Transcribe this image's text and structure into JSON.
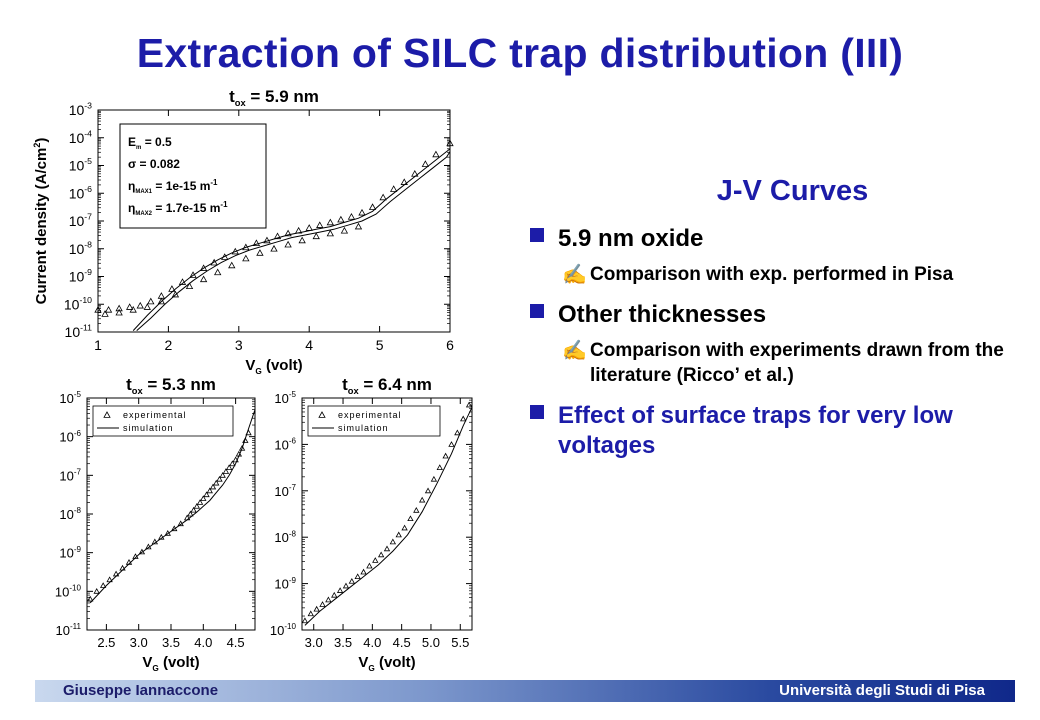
{
  "slide": {
    "title": "Extraction of SILC trap distribution (III)",
    "section_title": "J-V Curves",
    "bullets": [
      {
        "text": "5.9 nm oxide",
        "subs": [
          "Comparison with exp. performed in Pisa"
        ]
      },
      {
        "text": "Other thicknesses",
        "subs": [
          "Comparison with experiments drawn from the literature (Ricco’ et al.)"
        ]
      },
      {
        "text": "Effect of surface traps for very low voltages",
        "subs": []
      }
    ],
    "footer": {
      "author": "Giuseppe Iannaccone",
      "university": "Università degli Studi di Pisa"
    },
    "colors": {
      "title": "#1c1ca8",
      "bullet": "#1c1ca8",
      "text": "#000000"
    }
  },
  "chart_data": [
    {
      "type": "scatter",
      "title": "t_ox = 5.9 nm",
      "title_main": "t",
      "title_sub": "ox",
      "title_rest": " = 5.9 nm",
      "xlabel_main": "V",
      "xlabel_sub": "G",
      "xlabel_rest": " (volt)",
      "ylabel": "Current density (A/cm",
      "ylabel_sup": "2",
      "ylabel_end": ")",
      "xlim": [
        1,
        6
      ],
      "ylim_exp": [
        -11,
        -3
      ],
      "xticks": [
        "1",
        "2",
        "3",
        "4",
        "5",
        "6"
      ],
      "yticks_exp": [
        "-11",
        "-10",
        "-9",
        "-8",
        "-7",
        "-6",
        "-5",
        "-4",
        "-3"
      ],
      "box_lines": [
        {
          "main": "E",
          "sub": "m",
          "rest": " = 0.5"
        },
        {
          "main": "σ",
          "sub": "",
          "rest": " = 0.082"
        },
        {
          "main": "η",
          "sub": "MAX1",
          "rest": " = 1e-15 m",
          "sup": "-1"
        },
        {
          "main": "η",
          "sub": "MAX2",
          "rest": " = 1.7e-15 m",
          "sup": "-1"
        }
      ],
      "series": [
        {
          "marker": "triangle",
          "x": [
            1.0,
            1.15,
            1.3,
            1.45,
            1.6,
            1.75,
            1.9,
            2.05,
            2.2,
            2.35,
            2.5,
            2.65,
            2.8,
            2.95,
            3.1,
            3.25,
            3.4,
            3.55,
            3.7,
            3.85,
            4.0,
            4.15,
            4.3,
            4.45,
            4.6,
            4.75,
            4.9,
            5.05,
            5.2,
            5.35,
            5.5,
            5.65,
            5.8,
            6.0
          ],
          "y": [
            -10.2,
            -10.2,
            -10.15,
            -10.1,
            -10.05,
            -9.9,
            -9.7,
            -9.45,
            -9.2,
            -8.95,
            -8.7,
            -8.5,
            -8.3,
            -8.1,
            -7.95,
            -7.8,
            -7.7,
            -7.55,
            -7.45,
            -7.35,
            -7.25,
            -7.15,
            -7.05,
            -6.95,
            -6.85,
            -6.7,
            -6.5,
            -6.15,
            -5.85,
            -5.6,
            -5.3,
            -4.95,
            -4.6,
            -4.2
          ]
        },
        {
          "marker": "triangle",
          "x": [
            1.1,
            1.3,
            1.5,
            1.7,
            1.9,
            2.1,
            2.3,
            2.5,
            2.7,
            2.9,
            3.1,
            3.3,
            3.5,
            3.7,
            3.9,
            4.1,
            4.3,
            4.5,
            4.7
          ],
          "y": [
            -10.35,
            -10.3,
            -10.2,
            -10.1,
            -9.9,
            -9.65,
            -9.35,
            -9.1,
            -8.85,
            -8.6,
            -8.35,
            -8.15,
            -8.0,
            -7.85,
            -7.7,
            -7.55,
            -7.45,
            -7.35,
            -7.2
          ]
        },
        {
          "marker": "line",
          "x": [
            1.5,
            1.7,
            1.9,
            2.1,
            2.3,
            2.5,
            2.7,
            2.9,
            3.1,
            3.3,
            3.5,
            3.7,
            3.9,
            4.1,
            4.3,
            4.5,
            4.7,
            4.9,
            5.1,
            5.3,
            5.5,
            5.7,
            5.9,
            6.0
          ],
          "y": [
            -10.95,
            -10.4,
            -9.9,
            -9.45,
            -9.05,
            -8.7,
            -8.4,
            -8.15,
            -7.95,
            -7.8,
            -7.65,
            -7.5,
            -7.4,
            -7.3,
            -7.2,
            -7.05,
            -6.9,
            -6.65,
            -6.2,
            -5.8,
            -5.4,
            -5.0,
            -4.6,
            -4.4
          ]
        },
        {
          "marker": "line",
          "x": [
            1.55,
            1.75,
            1.95,
            2.15,
            2.35,
            2.55,
            2.75,
            2.95,
            3.15,
            3.35,
            3.55,
            3.75,
            3.95,
            4.15,
            4.35,
            4.55,
            4.75,
            4.95,
            5.15,
            5.35,
            5.55,
            5.75,
            5.95,
            6.0
          ],
          "y": [
            -10.95,
            -10.5,
            -10.0,
            -9.55,
            -9.15,
            -8.8,
            -8.5,
            -8.25,
            -8.05,
            -7.9,
            -7.75,
            -7.6,
            -7.5,
            -7.4,
            -7.3,
            -7.15,
            -7.0,
            -6.75,
            -6.3,
            -5.9,
            -5.5,
            -5.1,
            -4.7,
            -4.5
          ]
        }
      ]
    },
    {
      "type": "scatter",
      "title": "t_ox = 5.3 nm",
      "title_main": "t",
      "title_sub": "ox",
      "title_rest": " = 5.3 nm",
      "xlabel_main": "V",
      "xlabel_sub": "G",
      "xlabel_rest": " (volt)",
      "xlim": [
        2.2,
        4.8
      ],
      "ylim_exp": [
        -11,
        -5
      ],
      "xticks": [
        "2.5",
        "3.0",
        "3.5",
        "4.0",
        "4.5"
      ],
      "yticks_exp": [
        "-11",
        "-10",
        "-9",
        "-8",
        "-7",
        "-6",
        "-5"
      ],
      "legend": [
        "experimental",
        "simulation"
      ],
      "series": [
        {
          "name": "experimental",
          "marker": "triangle",
          "x": [
            2.25,
            2.35,
            2.45,
            2.55,
            2.65,
            2.75,
            2.85,
            2.95,
            3.05,
            3.15,
            3.25,
            3.35,
            3.45,
            3.55,
            3.65,
            3.75,
            3.8,
            3.85,
            3.9,
            3.95,
            4.0,
            4.05,
            4.1,
            4.15,
            4.2,
            4.25,
            4.3,
            4.35,
            4.4,
            4.45,
            4.5,
            4.55,
            4.6,
            4.65,
            4.7
          ],
          "y": [
            -10.2,
            -10.0,
            -9.85,
            -9.7,
            -9.55,
            -9.4,
            -9.25,
            -9.1,
            -8.98,
            -8.85,
            -8.72,
            -8.6,
            -8.5,
            -8.38,
            -8.25,
            -8.1,
            -8.0,
            -7.9,
            -7.8,
            -7.7,
            -7.6,
            -7.5,
            -7.4,
            -7.3,
            -7.2,
            -7.1,
            -7.0,
            -6.9,
            -6.8,
            -6.7,
            -6.6,
            -6.45,
            -6.3,
            -6.1,
            -5.9
          ]
        },
        {
          "name": "simulation",
          "marker": "line",
          "x": [
            2.25,
            2.5,
            2.75,
            3.0,
            3.25,
            3.5,
            3.75,
            3.9,
            4.0,
            4.1,
            4.2,
            4.3,
            4.4,
            4.5,
            4.6,
            4.7,
            4.8
          ],
          "y": [
            -10.3,
            -9.85,
            -9.45,
            -9.05,
            -8.75,
            -8.45,
            -8.15,
            -7.95,
            -7.8,
            -7.65,
            -7.45,
            -7.25,
            -7.0,
            -6.7,
            -6.3,
            -5.8,
            -5.3
          ]
        }
      ]
    },
    {
      "type": "scatter",
      "title": "t_ox = 6.4 nm",
      "title_main": "t",
      "title_sub": "ox",
      "title_rest": " = 6.4 nm",
      "xlabel_main": "V",
      "xlabel_sub": "G",
      "xlabel_rest": " (volt)",
      "xlim": [
        2.8,
        5.7
      ],
      "ylim_exp": [
        -10,
        -5
      ],
      "xticks": [
        "3.0",
        "3.5",
        "4.0",
        "4.5",
        "5.0",
        "5.5"
      ],
      "yticks_exp": [
        "-10",
        "-9",
        "-8",
        "-7",
        "-6",
        "-5"
      ],
      "legend": [
        "experimental",
        "simulation"
      ],
      "series": [
        {
          "name": "experimental",
          "marker": "triangle",
          "x": [
            2.85,
            2.95,
            3.05,
            3.15,
            3.25,
            3.35,
            3.45,
            3.55,
            3.65,
            3.75,
            3.85,
            3.95,
            4.05,
            4.15,
            4.25,
            4.35,
            4.45,
            4.55,
            4.65,
            4.75,
            4.85,
            4.95,
            5.05,
            5.15,
            5.25,
            5.35,
            5.45,
            5.55,
            5.65
          ],
          "y": [
            -9.8,
            -9.65,
            -9.55,
            -9.45,
            -9.35,
            -9.25,
            -9.15,
            -9.05,
            -8.95,
            -8.85,
            -8.75,
            -8.62,
            -8.5,
            -8.38,
            -8.25,
            -8.1,
            -7.95,
            -7.8,
            -7.6,
            -7.42,
            -7.2,
            -7.0,
            -6.75,
            -6.5,
            -6.25,
            -6.0,
            -5.75,
            -5.45,
            -5.15
          ]
        },
        {
          "name": "simulation",
          "marker": "line",
          "x": [
            2.85,
            3.1,
            3.35,
            3.6,
            3.85,
            4.1,
            4.35,
            4.6,
            4.85,
            5.1,
            5.35,
            5.55,
            5.7
          ],
          "y": [
            -9.9,
            -9.6,
            -9.35,
            -9.1,
            -8.85,
            -8.6,
            -8.3,
            -7.95,
            -7.45,
            -6.85,
            -6.2,
            -5.6,
            -5.2
          ]
        }
      ]
    }
  ]
}
